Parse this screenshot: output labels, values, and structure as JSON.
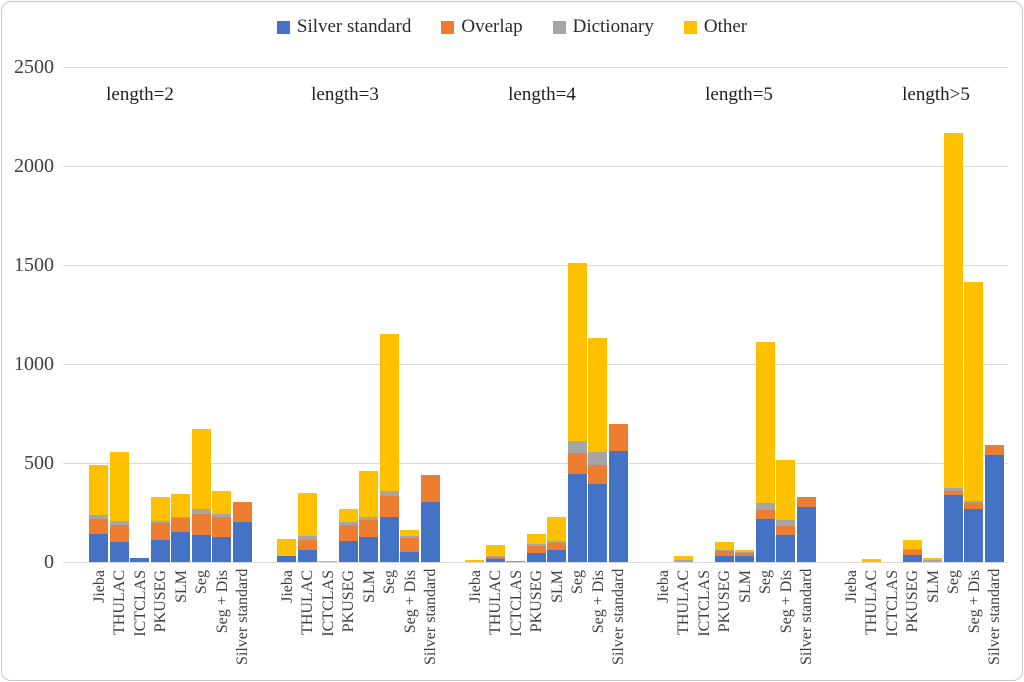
{
  "chart": {
    "background": "#ffffff",
    "border_color": "#c9c9c9",
    "grid_color": "#d9d9d9",
    "axis_text_color": "#404040",
    "group_label_color": "#1f1f1f"
  },
  "legend": {
    "position": "top-center",
    "items": [
      {
        "label": "Silver standard",
        "color": "#4472C4"
      },
      {
        "label": "Overlap",
        "color": "#ED7D31"
      },
      {
        "label": "Dictionary",
        "color": "#A5A5A5"
      },
      {
        "label": "Other",
        "color": "#FFC000"
      }
    ]
  },
  "chart_data": {
    "type": "bar",
    "stacked": true,
    "title": "",
    "xlabel": "",
    "ylabel": "",
    "ylim": [
      0,
      2500
    ],
    "yticks": [
      0,
      500,
      1000,
      1500,
      2000,
      2500
    ],
    "grid": true,
    "legend_position": "top",
    "groups": [
      "length=2",
      "length=3",
      "length=4",
      "length=5",
      "length>5"
    ],
    "categories": [
      "Jieba",
      "THULAC",
      "ICTCLAS",
      "PKUSEG",
      "SLM",
      "Seg",
      "Seg + Dis",
      "Silver standard"
    ],
    "series": [
      {
        "name": "Silver standard",
        "color": "#4472C4",
        "values_by_group": [
          [
            140,
            100,
            18,
            110,
            150,
            135,
            125,
            200
          ],
          [
            30,
            60,
            0,
            105,
            125,
            225,
            50,
            305
          ],
          [
            0,
            17,
            0,
            45,
            60,
            445,
            395,
            560
          ],
          [
            0,
            0,
            0,
            30,
            30,
            215,
            135,
            280
          ],
          [
            0,
            0,
            0,
            35,
            0,
            340,
            270,
            540
          ]
        ]
      },
      {
        "name": "Overlap",
        "color": "#ED7D31",
        "values_by_group": [
          [
            75,
            85,
            0,
            85,
            70,
            105,
            100,
            105
          ],
          [
            0,
            50,
            0,
            80,
            85,
            110,
            73,
            135
          ],
          [
            0,
            8,
            5,
            35,
            35,
            105,
            95,
            135
          ],
          [
            0,
            0,
            0,
            25,
            15,
            50,
            45,
            50
          ],
          [
            0,
            0,
            0,
            25,
            0,
            20,
            30,
            50
          ]
        ]
      },
      {
        "name": "Dictionary",
        "color": "#A5A5A5",
        "values_by_group": [
          [
            20,
            20,
            0,
            10,
            8,
            30,
            15,
            0
          ],
          [
            0,
            20,
            0,
            15,
            15,
            25,
            7,
            0
          ],
          [
            0,
            3,
            0,
            10,
            10,
            60,
            65,
            0
          ],
          [
            0,
            10,
            0,
            5,
            3,
            35,
            30,
            0
          ],
          [
            0,
            0,
            0,
            8,
            10,
            15,
            10,
            0
          ]
        ]
      },
      {
        "name": "Other",
        "color": "#FFC000",
        "values_by_group": [
          [
            255,
            350,
            0,
            125,
            117,
            400,
            120,
            0
          ],
          [
            85,
            220,
            5,
            70,
            235,
            790,
            30,
            0
          ],
          [
            8,
            57,
            0,
            50,
            120,
            900,
            575,
            0
          ],
          [
            0,
            20,
            0,
            40,
            12,
            810,
            305,
            0
          ],
          [
            0,
            15,
            0,
            42,
            10,
            1790,
            1105,
            0
          ]
        ]
      }
    ]
  }
}
